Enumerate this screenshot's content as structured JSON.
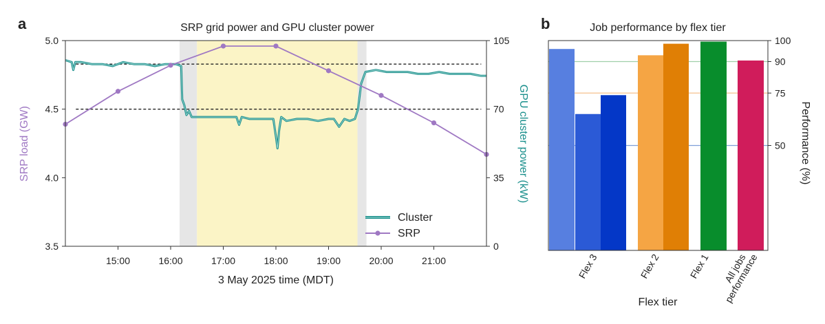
{
  "chart_data": [
    {
      "panel": "a",
      "type": "line",
      "title": "SRP grid power and GPU cluster power",
      "xlabel": "3 May 2025 time (MDT)",
      "ylabel_left": "SRP load (GW)",
      "ylabel_right": "GPU cluster power (kW)",
      "x_unit": "hours",
      "xlim": [
        14.0,
        22.0
      ],
      "ylim_left": [
        3.5,
        5.0
      ],
      "ylim_right": [
        0,
        105
      ],
      "x_ticks": [
        15,
        16,
        17,
        18,
        19,
        20,
        21
      ],
      "x_tick_labels": [
        "15:00",
        "16:00",
        "17:00",
        "18:00",
        "19:00",
        "20:00",
        "21:00"
      ],
      "y_ticks_left": [
        3.5,
        4.0,
        4.5,
        5.0
      ],
      "y_tick_labels_left": [
        "3.5",
        "4.0",
        "4.5",
        "5.0"
      ],
      "y_ticks_right": [
        0,
        35,
        70,
        105
      ],
      "y_tick_labels_right": [
        "0",
        "35",
        "70",
        "105"
      ],
      "shaded_regions": [
        {
          "name": "transition",
          "from": 16.17,
          "to": 16.5,
          "color": "#e6e6e6"
        },
        {
          "name": "flex-event",
          "from": 16.5,
          "to": 19.55,
          "color": "#fbf4c6"
        },
        {
          "name": "transition",
          "from": 19.55,
          "to": 19.72,
          "color": "#e6e6e6"
        }
      ],
      "reference_lines_right": [
        93,
        70
      ],
      "series": [
        {
          "name": "SRP",
          "axis": "left",
          "color": "#9f78c3",
          "x": [
            14.0,
            15.0,
            16.0,
            17.0,
            18.0,
            19.0,
            20.0,
            21.0,
            22.0
          ],
          "values": [
            4.39,
            4.63,
            4.82,
            4.96,
            4.96,
            4.78,
            4.6,
            4.4,
            4.17
          ]
        },
        {
          "name": "Cluster",
          "axis": "right",
          "color": "#1a8f8c",
          "x": [
            14.0,
            14.12,
            14.15,
            14.19,
            14.3,
            14.5,
            14.7,
            14.9,
            15.1,
            15.3,
            15.5,
            15.7,
            15.9,
            16.1,
            16.2,
            16.22,
            16.26,
            16.3,
            16.35,
            16.4,
            16.5,
            16.8,
            17.1,
            17.25,
            17.3,
            17.35,
            17.5,
            17.8,
            17.95,
            18.0,
            18.03,
            18.06,
            18.1,
            18.2,
            18.4,
            18.6,
            18.8,
            19.0,
            19.1,
            19.2,
            19.3,
            19.4,
            19.5,
            19.56,
            19.62,
            19.7,
            19.9,
            20.1,
            20.3,
            20.5,
            20.7,
            20.9,
            21.1,
            21.3,
            21.5,
            21.7,
            21.9,
            22.0
          ],
          "values": [
            95,
            94,
            90,
            94,
            94,
            93,
            93,
            92,
            94,
            93,
            93,
            92,
            93,
            93,
            92,
            75,
            72,
            67,
            69,
            66,
            66,
            66,
            66,
            66,
            62,
            66,
            65,
            65,
            65,
            56,
            50,
            59,
            66,
            64,
            65,
            65,
            64,
            65,
            65,
            61,
            65,
            64,
            65,
            70,
            83,
            89,
            90,
            89,
            89,
            89,
            88,
            88,
            89,
            88,
            88,
            88,
            87,
            87
          ]
        }
      ],
      "legend": [
        "Cluster",
        "SRP"
      ],
      "legend_position": "bottom-right"
    },
    {
      "panel": "b",
      "type": "bar",
      "title": "Job performance by flex tier",
      "xlabel": "Flex tier",
      "ylabel": "Performance (%)",
      "ylim": [
        0,
        100
      ],
      "y_ticks": [
        50,
        75,
        90,
        100
      ],
      "y_tick_labels": [
        "50",
        "75",
        "90",
        "100"
      ],
      "categories": [
        "Flex 3",
        "Flex 2",
        "Flex 1",
        "All jobs performance"
      ],
      "bars": [
        {
          "category": "Flex 3",
          "value": 96,
          "color": "#577fe0"
        },
        {
          "category": "Flex 3",
          "value": 65,
          "color": "#2b5ad6"
        },
        {
          "category": "Flex 3",
          "value": 74,
          "color": "#0437c7"
        },
        {
          "category": "Flex 2",
          "value": 93,
          "color": "#f5a544"
        },
        {
          "category": "Flex 2",
          "value": 98.5,
          "color": "#e07f05"
        },
        {
          "category": "Flex 1",
          "value": 99.5,
          "color": "#088d2c"
        },
        {
          "category": "All jobs performance",
          "value": 90.5,
          "color": "#d01c5b"
        }
      ],
      "reference_lines": [
        {
          "value": 90,
          "color": "#9fcfa8"
        },
        {
          "value": 75,
          "color": "#f4c08c"
        },
        {
          "value": 50,
          "color": "#7e9fd7"
        }
      ]
    }
  ],
  "figure": {
    "panel_labels": [
      "a",
      "b"
    ],
    "legend_labels": {
      "cluster": "Cluster",
      "srp": "SRP"
    },
    "x_category_labels": [
      "Flex 3",
      "Flex 2",
      "Flex 1"
    ],
    "all_jobs_label_lines": [
      "All jobs",
      "performance"
    ]
  }
}
